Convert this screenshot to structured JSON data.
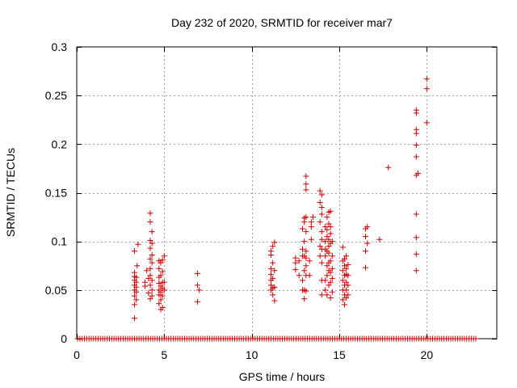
{
  "chart_data": {
    "type": "scatter",
    "title": "Day 232 of 2020, SRMTID for receiver mar7",
    "xlabel": "GPS time / hours",
    "ylabel": "SRMTID / TECUs",
    "xlim": [
      0,
      24
    ],
    "ylim": [
      0,
      0.3
    ],
    "x_ticks": [
      0,
      5,
      10,
      15,
      20
    ],
    "x_tick_labels": [
      "0",
      "5",
      "10",
      "15",
      "20"
    ],
    "y_ticks": [
      0,
      0.05,
      0.1,
      0.15,
      0.2,
      0.25,
      0.3
    ],
    "y_tick_labels": [
      "0",
      "0.05",
      "0.1",
      "0.15",
      "0.2",
      "0.25",
      "0.3"
    ],
    "grid": true,
    "marker": "+",
    "color": "#cc0000",
    "series": [
      {
        "name": "SRMTID",
        "points": [
          [
            3.3,
            0.021
          ],
          [
            3.3,
            0.035
          ],
          [
            3.3,
            0.044
          ],
          [
            3.3,
            0.05
          ],
          [
            3.3,
            0.055
          ],
          [
            3.3,
            0.06
          ],
          [
            3.3,
            0.064
          ],
          [
            3.3,
            0.068
          ],
          [
            3.3,
            0.09
          ],
          [
            3.4,
            0.04
          ],
          [
            3.4,
            0.048
          ],
          [
            3.4,
            0.053
          ],
          [
            3.4,
            0.058
          ],
          [
            3.4,
            0.063
          ],
          [
            3.45,
            0.075
          ],
          [
            3.5,
            0.097
          ],
          [
            3.9,
            0.054
          ],
          [
            3.9,
            0.058
          ],
          [
            4.0,
            0.07
          ],
          [
            4.1,
            0.047
          ],
          [
            4.1,
            0.062
          ],
          [
            4.2,
            0.041
          ],
          [
            4.2,
            0.055
          ],
          [
            4.2,
            0.065
          ],
          [
            4.2,
            0.072
          ],
          [
            4.2,
            0.082
          ],
          [
            4.2,
            0.093
          ],
          [
            4.2,
            0.101
          ],
          [
            4.2,
            0.12
          ],
          [
            4.2,
            0.129
          ],
          [
            4.3,
            0.044
          ],
          [
            4.3,
            0.05
          ],
          [
            4.3,
            0.06
          ],
          [
            4.3,
            0.078
          ],
          [
            4.3,
            0.086
          ],
          [
            4.3,
            0.098
          ],
          [
            4.3,
            0.11
          ],
          [
            4.7,
            0.036
          ],
          [
            4.7,
            0.045
          ],
          [
            4.7,
            0.05
          ],
          [
            4.7,
            0.057
          ],
          [
            4.7,
            0.063
          ],
          [
            4.7,
            0.072
          ],
          [
            4.7,
            0.08
          ],
          [
            4.8,
            0.03
          ],
          [
            4.8,
            0.04
          ],
          [
            4.8,
            0.048
          ],
          [
            4.8,
            0.054
          ],
          [
            4.8,
            0.065
          ],
          [
            4.8,
            0.078
          ],
          [
            4.9,
            0.032
          ],
          [
            4.9,
            0.044
          ],
          [
            4.9,
            0.052
          ],
          [
            4.9,
            0.058
          ],
          [
            4.9,
            0.069
          ],
          [
            4.9,
            0.081
          ],
          [
            5.0,
            0.05
          ],
          [
            5.0,
            0.058
          ],
          [
            5.0,
            0.085
          ],
          [
            6.9,
            0.038
          ],
          [
            6.9,
            0.055
          ],
          [
            6.9,
            0.067
          ],
          [
            7.0,
            0.05
          ],
          [
            11.1,
            0.05
          ],
          [
            11.1,
            0.055
          ],
          [
            11.1,
            0.06
          ],
          [
            11.1,
            0.066
          ],
          [
            11.1,
            0.072
          ],
          [
            11.1,
            0.086
          ],
          [
            11.1,
            0.09
          ],
          [
            11.2,
            0.045
          ],
          [
            11.2,
            0.052
          ],
          [
            11.2,
            0.062
          ],
          [
            11.2,
            0.078
          ],
          [
            11.2,
            0.095
          ],
          [
            11.3,
            0.039
          ],
          [
            11.3,
            0.053
          ],
          [
            11.3,
            0.07
          ],
          [
            11.3,
            0.099
          ],
          [
            12.5,
            0.071
          ],
          [
            12.5,
            0.078
          ],
          [
            12.5,
            0.083
          ],
          [
            12.7,
            0.065
          ],
          [
            12.7,
            0.08
          ],
          [
            12.9,
            0.05
          ],
          [
            12.9,
            0.06
          ],
          [
            12.9,
            0.085
          ],
          [
            12.9,
            0.092
          ],
          [
            12.9,
            0.113
          ],
          [
            13.0,
            0.041
          ],
          [
            13.0,
            0.05
          ],
          [
            13.0,
            0.07
          ],
          [
            13.0,
            0.085
          ],
          [
            13.0,
            0.1
          ],
          [
            13.0,
            0.12
          ],
          [
            13.0,
            0.124
          ],
          [
            13.1,
            0.049
          ],
          [
            13.1,
            0.065
          ],
          [
            13.1,
            0.075
          ],
          [
            13.1,
            0.083
          ],
          [
            13.1,
            0.09
          ],
          [
            13.1,
            0.11
          ],
          [
            13.1,
            0.125
          ],
          [
            13.1,
            0.153
          ],
          [
            13.1,
            0.159
          ],
          [
            13.1,
            0.167
          ],
          [
            13.3,
            0.065
          ],
          [
            13.3,
            0.08
          ],
          [
            13.4,
            0.102
          ],
          [
            13.4,
            0.115
          ],
          [
            13.4,
            0.12
          ],
          [
            13.5,
            0.125
          ],
          [
            13.9,
            0.085
          ],
          [
            13.9,
            0.095
          ],
          [
            13.9,
            0.12
          ],
          [
            13.9,
            0.14
          ],
          [
            13.9,
            0.152
          ],
          [
            14.0,
            0.045
          ],
          [
            14.0,
            0.06
          ],
          [
            14.0,
            0.078
          ],
          [
            14.0,
            0.092
          ],
          [
            14.0,
            0.102
          ],
          [
            14.0,
            0.11
          ],
          [
            14.0,
            0.128
          ],
          [
            14.0,
            0.135
          ],
          [
            14.0,
            0.148
          ],
          [
            14.2,
            0.05
          ],
          [
            14.2,
            0.06
          ],
          [
            14.2,
            0.085
          ],
          [
            14.2,
            0.092
          ],
          [
            14.2,
            0.1
          ],
          [
            14.2,
            0.115
          ],
          [
            14.3,
            0.045
          ],
          [
            14.3,
            0.065
          ],
          [
            14.3,
            0.075
          ],
          [
            14.3,
            0.09
          ],
          [
            14.3,
            0.105
          ],
          [
            14.3,
            0.112
          ],
          [
            14.3,
            0.125
          ],
          [
            14.4,
            0.055
          ],
          [
            14.4,
            0.07
          ],
          [
            14.4,
            0.078
          ],
          [
            14.4,
            0.088
          ],
          [
            14.4,
            0.095
          ],
          [
            14.4,
            0.102
          ],
          [
            14.4,
            0.118
          ],
          [
            14.4,
            0.13
          ],
          [
            14.5,
            0.042
          ],
          [
            14.5,
            0.058
          ],
          [
            14.5,
            0.068
          ],
          [
            14.5,
            0.08
          ],
          [
            14.5,
            0.098
          ],
          [
            14.5,
            0.108
          ],
          [
            14.5,
            0.115
          ],
          [
            14.5,
            0.131
          ],
          [
            14.6,
            0.048
          ],
          [
            14.6,
            0.062
          ],
          [
            14.6,
            0.072
          ],
          [
            14.6,
            0.085
          ],
          [
            14.6,
            0.1
          ],
          [
            15.2,
            0.04
          ],
          [
            15.2,
            0.05
          ],
          [
            15.2,
            0.06
          ],
          [
            15.2,
            0.07
          ],
          [
            15.2,
            0.08
          ],
          [
            15.2,
            0.094
          ],
          [
            15.3,
            0.035
          ],
          [
            15.3,
            0.045
          ],
          [
            15.3,
            0.055
          ],
          [
            15.3,
            0.065
          ],
          [
            15.3,
            0.075
          ],
          [
            15.3,
            0.082
          ],
          [
            15.4,
            0.042
          ],
          [
            15.4,
            0.05
          ],
          [
            15.4,
            0.058
          ],
          [
            15.4,
            0.066
          ],
          [
            15.4,
            0.072
          ],
          [
            15.4,
            0.085
          ],
          [
            15.5,
            0.045
          ],
          [
            15.5,
            0.055
          ],
          [
            15.5,
            0.065
          ],
          [
            15.5,
            0.076
          ],
          [
            16.5,
            0.073
          ],
          [
            16.5,
            0.09
          ],
          [
            16.5,
            0.105
          ],
          [
            16.5,
            0.113
          ],
          [
            16.6,
            0.098
          ],
          [
            16.6,
            0.115
          ],
          [
            17.3,
            0.102
          ],
          [
            17.8,
            0.176
          ],
          [
            19.4,
            0.07
          ],
          [
            19.4,
            0.087
          ],
          [
            19.4,
            0.104
          ],
          [
            19.4,
            0.128
          ],
          [
            19.4,
            0.168
          ],
          [
            19.4,
            0.187
          ],
          [
            19.4,
            0.199
          ],
          [
            19.4,
            0.211
          ],
          [
            19.4,
            0.215
          ],
          [
            19.4,
            0.232
          ],
          [
            19.4,
            0.235
          ],
          [
            19.5,
            0.17
          ],
          [
            20.0,
            0.222
          ],
          [
            20.0,
            0.257
          ],
          [
            20.0,
            0.267
          ]
        ],
        "zero_band": {
          "y": 0,
          "x_start": 0.05,
          "x_end": 22.8,
          "x_step": 0.13
        }
      }
    ]
  }
}
